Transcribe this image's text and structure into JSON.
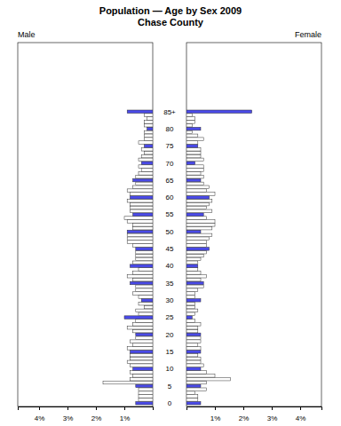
{
  "chart_data": {
    "type": "bar",
    "orientation": "horizontal",
    "title": "Population — Age by Sex 2009",
    "subtitle": "Chase County",
    "categories": [
      "0",
      null,
      null,
      null,
      null,
      "5",
      null,
      null,
      null,
      null,
      "10",
      null,
      null,
      null,
      null,
      "15",
      null,
      null,
      null,
      null,
      "20",
      null,
      null,
      null,
      null,
      "25",
      null,
      null,
      null,
      null,
      "30",
      null,
      null,
      null,
      null,
      "35",
      null,
      null,
      null,
      null,
      "40",
      null,
      null,
      null,
      null,
      "45",
      null,
      null,
      null,
      null,
      "50",
      null,
      null,
      null,
      null,
      "55",
      null,
      null,
      null,
      null,
      "60",
      null,
      null,
      null,
      null,
      "65",
      null,
      null,
      null,
      null,
      "70",
      null,
      null,
      null,
      null,
      "75",
      null,
      null,
      null,
      null,
      "80",
      null,
      null,
      null,
      null,
      "85+"
    ],
    "xlim": [
      0,
      4.75
    ],
    "xticks": [
      {
        "value": 1,
        "label": "1%"
      },
      {
        "value": 2,
        "label": "2%"
      },
      {
        "value": 3,
        "label": "3%"
      },
      {
        "value": 4,
        "label": "4%"
      }
    ],
    "series": [
      {
        "name": "Male",
        "values": [
          0.6,
          0.5,
          0.5,
          0.5,
          0.5,
          0.6,
          1.75,
          0.8,
          0.7,
          0.8,
          0.7,
          0.8,
          0.9,
          0.8,
          0.8,
          0.8,
          0.9,
          0.7,
          0.8,
          0.6,
          0.6,
          0.7,
          0.9,
          0.7,
          0.6,
          1.0,
          0.5,
          0.6,
          0.3,
          0.5,
          0.4,
          0.5,
          0.7,
          0.6,
          0.6,
          0.8,
          0.7,
          0.9,
          0.7,
          0.5,
          0.8,
          0.7,
          0.6,
          0.6,
          0.6,
          0.6,
          0.7,
          0.9,
          0.9,
          0.9,
          0.9,
          0.7,
          0.7,
          0.9,
          1.0,
          0.7,
          0.8,
          0.8,
          0.8,
          0.9,
          0.8,
          0.8,
          0.9,
          0.7,
          0.6,
          0.7,
          0.6,
          0.5,
          0.4,
          0.5,
          0.4,
          0.5,
          0.4,
          0.3,
          0.4,
          0.3,
          0.5,
          0.3,
          0.3,
          0.3,
          0.2,
          0.3,
          0.3,
          0.2,
          0.3,
          0.9
        ],
        "colors": [
          "#4a4ae8",
          "#ffffff",
          "#ffffff",
          "#ffffff",
          "#ffffff",
          "#4a4ae8",
          "#ffffff",
          "#ffffff",
          "#ffffff",
          "#ffffff",
          "#4a4ae8",
          "#ffffff",
          "#ffffff",
          "#ffffff",
          "#ffffff",
          "#4a4ae8",
          "#ffffff",
          "#ffffff",
          "#ffffff",
          "#ffffff",
          "#4a4ae8",
          "#ffffff",
          "#ffffff",
          "#ffffff",
          "#ffffff",
          "#4a4ae8",
          "#ffffff",
          "#ffffff",
          "#ffffff",
          "#ffffff",
          "#4a4ae8",
          "#ffffff",
          "#ffffff",
          "#ffffff",
          "#ffffff",
          "#4a4ae8",
          "#ffffff",
          "#ffffff",
          "#ffffff",
          "#ffffff",
          "#4a4ae8",
          "#ffffff",
          "#ffffff",
          "#ffffff",
          "#ffffff",
          "#4a4ae8",
          "#ffffff",
          "#ffffff",
          "#ffffff",
          "#ffffff",
          "#4a4ae8",
          "#ffffff",
          "#ffffff",
          "#ffffff",
          "#ffffff",
          "#4a4ae8",
          "#ffffff",
          "#ffffff",
          "#ffffff",
          "#ffffff",
          "#4a4ae8",
          "#ffffff",
          "#ffffff",
          "#ffffff",
          "#ffffff",
          "#4a4ae8",
          "#ffffff",
          "#ffffff",
          "#ffffff",
          "#ffffff",
          "#4a4ae8",
          "#ffffff",
          "#ffffff",
          "#ffffff",
          "#ffffff",
          "#4a4ae8",
          "#ffffff",
          "#ffffff",
          "#ffffff",
          "#ffffff",
          "#4a4ae8",
          "#ffffff",
          "#ffffff",
          "#ffffff",
          "#ffffff",
          "#4a4ae8"
        ]
      },
      {
        "name": "Female",
        "values": [
          0.5,
          0.4,
          0.4,
          0.3,
          0.7,
          0.5,
          0.7,
          1.55,
          1.0,
          0.7,
          0.5,
          0.6,
          0.5,
          0.5,
          0.4,
          0.5,
          0.5,
          0.4,
          0.5,
          0.5,
          0.5,
          0.4,
          0.4,
          0.5,
          0.3,
          0.2,
          0.3,
          0.4,
          0.3,
          0.3,
          0.5,
          0.3,
          0.3,
          0.4,
          0.6,
          0.6,
          0.5,
          0.7,
          0.5,
          0.4,
          0.4,
          0.4,
          0.5,
          0.6,
          0.7,
          0.8,
          0.7,
          0.7,
          0.8,
          0.9,
          0.5,
          0.9,
          1.0,
          1.0,
          0.7,
          0.6,
          0.9,
          0.7,
          0.8,
          0.9,
          0.8,
          1.0,
          0.7,
          0.8,
          0.6,
          0.5,
          0.6,
          0.5,
          0.6,
          0.6,
          0.3,
          0.6,
          0.5,
          0.5,
          0.5,
          0.4,
          0.4,
          0.6,
          0.4,
          0.2,
          0.5,
          0.2,
          0.3,
          0.3,
          0.2,
          2.3
        ],
        "colors": [
          "#4a4ae8",
          "#ffffff",
          "#ffffff",
          "#ffffff",
          "#ffffff",
          "#4a4ae8",
          "#ffffff",
          "#ffffff",
          "#ffffff",
          "#ffffff",
          "#4a4ae8",
          "#ffffff",
          "#ffffff",
          "#ffffff",
          "#ffffff",
          "#4a4ae8",
          "#ffffff",
          "#ffffff",
          "#ffffff",
          "#ffffff",
          "#4a4ae8",
          "#ffffff",
          "#ffffff",
          "#ffffff",
          "#ffffff",
          "#4a4ae8",
          "#ffffff",
          "#ffffff",
          "#ffffff",
          "#ffffff",
          "#4a4ae8",
          "#ffffff",
          "#ffffff",
          "#ffffff",
          "#ffffff",
          "#4a4ae8",
          "#ffffff",
          "#ffffff",
          "#ffffff",
          "#ffffff",
          "#4a4ae8",
          "#ffffff",
          "#ffffff",
          "#ffffff",
          "#ffffff",
          "#4a4ae8",
          "#ffffff",
          "#ffffff",
          "#ffffff",
          "#ffffff",
          "#4a4ae8",
          "#ffffff",
          "#ffffff",
          "#ffffff",
          "#ffffff",
          "#4a4ae8",
          "#ffffff",
          "#ffffff",
          "#ffffff",
          "#ffffff",
          "#4a4ae8",
          "#ffffff",
          "#ffffff",
          "#ffffff",
          "#ffffff",
          "#4a4ae8",
          "#ffffff",
          "#ffffff",
          "#ffffff",
          "#ffffff",
          "#4a4ae8",
          "#ffffff",
          "#ffffff",
          "#ffffff",
          "#ffffff",
          "#4a4ae8",
          "#ffffff",
          "#ffffff",
          "#ffffff",
          "#ffffff",
          "#4a4ae8",
          "#ffffff",
          "#ffffff",
          "#ffffff",
          "#ffffff",
          "#4a4ae8"
        ]
      }
    ]
  }
}
